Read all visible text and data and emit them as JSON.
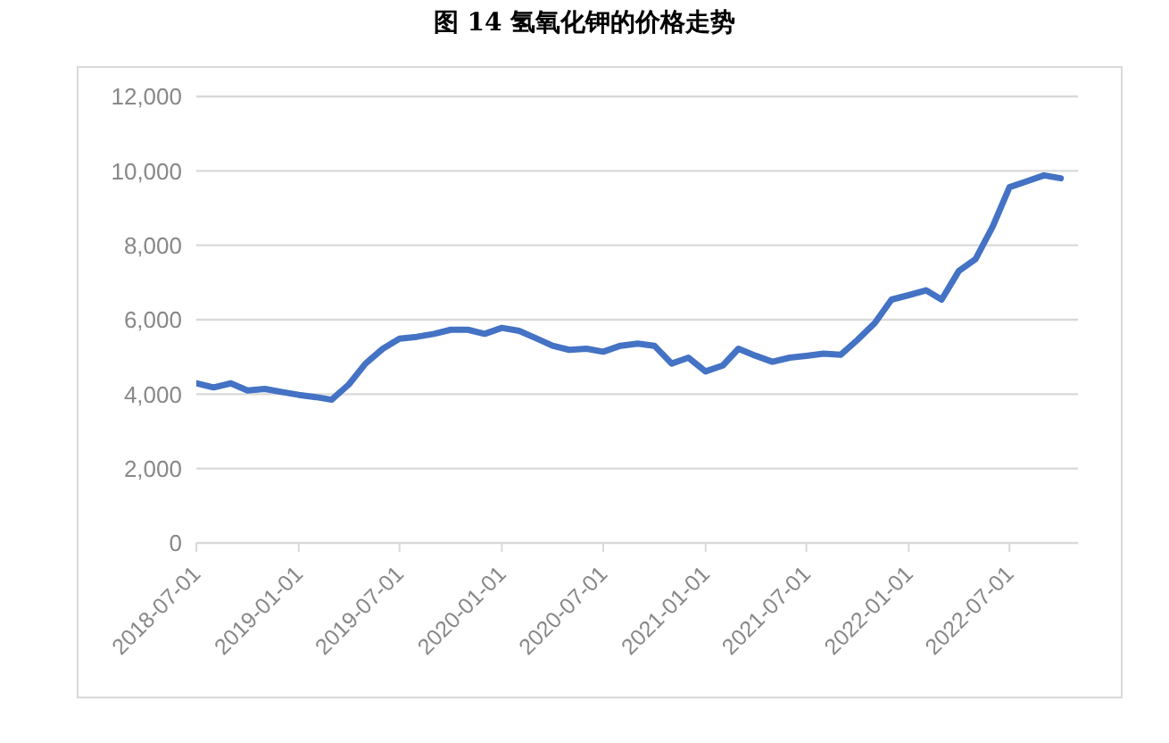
{
  "chart_data": {
    "type": "line",
    "title": "图 14 氢氧化钾的价格走势",
    "x": [
      "2018-07",
      "2018-08",
      "2018-09",
      "2018-10",
      "2018-11",
      "2018-12",
      "2019-01",
      "2019-02",
      "2019-03",
      "2019-04",
      "2019-05",
      "2019-06",
      "2019-07",
      "2019-08",
      "2019-09",
      "2019-10",
      "2019-11",
      "2019-12",
      "2020-01",
      "2020-02",
      "2020-03",
      "2020-04",
      "2020-05",
      "2020-06",
      "2020-07",
      "2020-08",
      "2020-09",
      "2020-10",
      "2020-11",
      "2020-12",
      "2021-01",
      "2021-02",
      "2021-03",
      "2021-04",
      "2021-05",
      "2021-06",
      "2021-07",
      "2021-08",
      "2021-09",
      "2021-10",
      "2021-11",
      "2021-12",
      "2022-01",
      "2022-02",
      "2022-03",
      "2022-04",
      "2022-05",
      "2022-06",
      "2022-07",
      "2022-08",
      "2022-09",
      "2022-10"
    ],
    "series": [
      {
        "color": "#4472c4",
        "values": [
          4290,
          4180,
          4290,
          4100,
          4140,
          4060,
          3980,
          3920,
          3850,
          4260,
          4820,
          5220,
          5490,
          5540,
          5620,
          5730,
          5730,
          5620,
          5780,
          5700,
          5510,
          5300,
          5190,
          5220,
          5140,
          5300,
          5360,
          5300,
          4820,
          4980,
          4610,
          4770,
          5220,
          5030,
          4870,
          4980,
          5030,
          5090,
          5060,
          5460,
          5910,
          6540,
          6660,
          6790,
          6540,
          7310,
          7630,
          8510,
          9560,
          9720,
          9880,
          9800
        ]
      }
    ],
    "xlim": [
      "2018-07-01",
      "2022-11-01"
    ],
    "xticks": [
      "2018-07-01",
      "2019-01-01",
      "2019-07-01",
      "2020-01-01",
      "2020-07-01",
      "2021-01-01",
      "2021-07-01",
      "2022-01-01",
      "2022-07-01"
    ],
    "ylim": [
      0,
      12000
    ],
    "yticks": [
      {
        "value": 0,
        "label": "0"
      },
      {
        "value": 2000,
        "label": "2,000"
      },
      {
        "value": 4000,
        "label": "4,000"
      },
      {
        "value": 6000,
        "label": "6,000"
      },
      {
        "value": 8000,
        "label": "8,000"
      },
      {
        "value": 10000,
        "label": "10,000"
      },
      {
        "value": 12000,
        "label": "12,000"
      }
    ],
    "grid": "y",
    "legend": false,
    "marker": "none",
    "line_style": "solid"
  }
}
